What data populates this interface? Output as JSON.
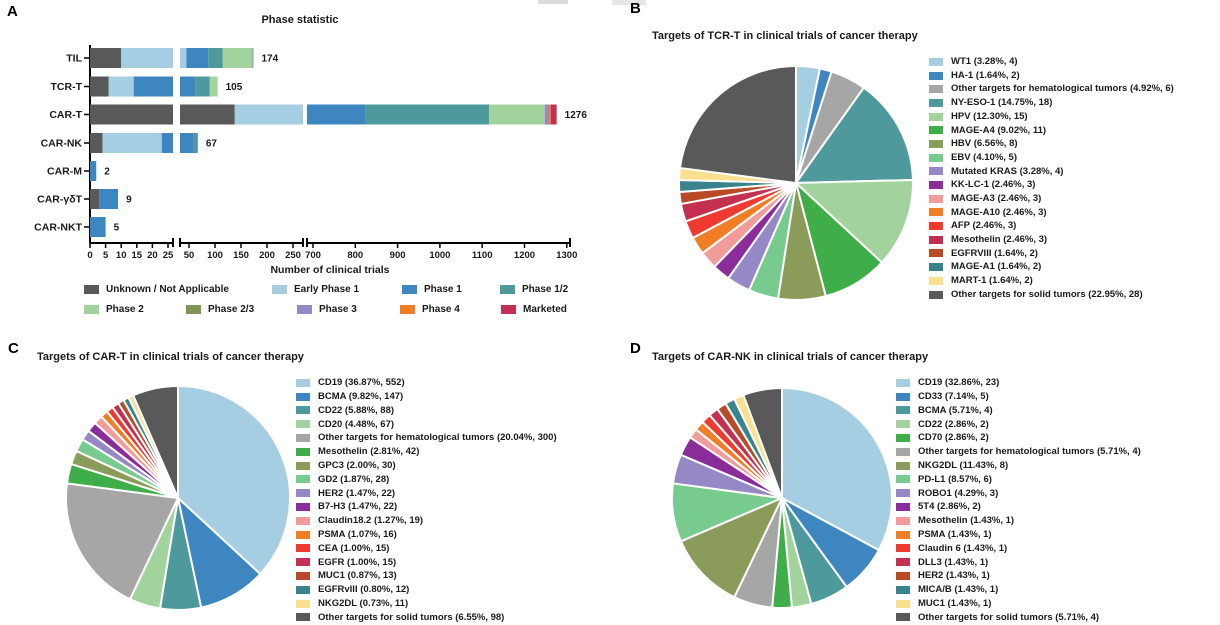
{
  "figure": {
    "artifact_note": "two faint gray crop marks at top edge"
  },
  "chart_data": [
    {
      "id": "A",
      "panel_label": "A",
      "type": "bar",
      "stacked": true,
      "orientation": "horizontal",
      "title": "Phase statistic",
      "xlabel": "Number of clinical trials",
      "axis_break_segments": [
        [
          0,
          25
        ],
        [
          50,
          250
        ],
        [
          700,
          1300
        ]
      ],
      "x_ticks": [
        [
          0,
          5,
          10,
          15,
          20,
          25
        ],
        [
          50,
          100,
          150,
          200,
          250
        ],
        [
          700,
          800,
          900,
          1000,
          1100,
          1200,
          1300
        ]
      ],
      "categories": [
        "TIL",
        "TCR-T",
        "CAR-T",
        "CAR-NK",
        "CAR-M",
        "CAR-γδT",
        "CAR-NKT"
      ],
      "totals": [
        174,
        105,
        1276,
        67,
        2,
        9,
        5
      ],
      "series": [
        {
          "name": "Unknown / Not Applicable",
          "color": "#595959",
          "values": [
            10,
            6,
            138,
            4,
            0,
            3,
            0
          ]
        },
        {
          "name": "Early Phase 1",
          "color": "#A6CEE3",
          "values": [
            35,
            8,
            262,
            19,
            0,
            0,
            0
          ]
        },
        {
          "name": "Phase 1",
          "color": "#3E86C0",
          "values": [
            42,
            49,
            423,
            36,
            2,
            6,
            5
          ]
        },
        {
          "name": "Phase 1/2",
          "color": "#4E999C",
          "values": [
            28,
            27,
            293,
            8,
            0,
            0,
            0
          ]
        },
        {
          "name": "Phase 2",
          "color": "#A3D39C",
          "values": [
            57,
            15,
            132,
            0,
            0,
            0,
            0
          ]
        },
        {
          "name": "Phase 2/3",
          "color": "#7E9654",
          "values": [
            0,
            0,
            0,
            0,
            0,
            0,
            0
          ]
        },
        {
          "name": "Phase 3",
          "color": "#9687C6",
          "values": [
            2,
            0,
            10,
            0,
            0,
            0,
            0
          ]
        },
        {
          "name": "Phase 4",
          "color": "#F07E26",
          "values": [
            0,
            0,
            4,
            0,
            0,
            0,
            0
          ]
        },
        {
          "name": "Marketed",
          "color": "#C4304F",
          "values": [
            0,
            0,
            14,
            0,
            0,
            0,
            0
          ]
        }
      ]
    },
    {
      "id": "B",
      "panel_label": "B",
      "type": "pie",
      "title": "Targets of TCR-T in clinical trials of cancer therapy",
      "slices": [
        {
          "label": "WT1",
          "pct": 3.28,
          "count": 4,
          "legend": "WT1 (3.28%, 4)",
          "color": "#A6CEE3"
        },
        {
          "label": "HA-1",
          "pct": 1.64,
          "count": 2,
          "legend": "HA-1 (1.64%, 2)",
          "color": "#3E86C0"
        },
        {
          "label": "Other targets for hematological tumors",
          "pct": 4.92,
          "count": 6,
          "legend": "Other targets for hematological tumors (4.92%, 6)",
          "color": "#A6A6A6"
        },
        {
          "label": "NY-ESO-1",
          "pct": 14.75,
          "count": 18,
          "legend": "NY-ESO-1 (14.75%, 18)",
          "color": "#4E999C"
        },
        {
          "label": "HPV",
          "pct": 12.3,
          "count": 15,
          "legend": "HPV (12.30%, 15)",
          "color": "#A3D39C"
        },
        {
          "label": "MAGE-A4",
          "pct": 9.02,
          "count": 11,
          "legend": "MAGE-A4 (9.02%, 11)",
          "color": "#3FAE49"
        },
        {
          "label": "HBV",
          "pct": 6.56,
          "count": 8,
          "legend": "HBV (6.56%, 8)",
          "color": "#8B9B5A"
        },
        {
          "label": "EBV",
          "pct": 4.1,
          "count": 5,
          "legend": "EBV (4.10%, 5)",
          "color": "#77CB8E"
        },
        {
          "label": "Mutated KRAS",
          "pct": 3.28,
          "count": 4,
          "legend": "Mutated KRAS (3.28%, 4)",
          "color": "#9687C6"
        },
        {
          "label": "KK-LC-1",
          "pct": 2.46,
          "count": 3,
          "legend": "KK-LC-1 (2.46%, 3)",
          "color": "#8A2D9B"
        },
        {
          "label": "MAGE-A3",
          "pct": 2.46,
          "count": 3,
          "legend": "MAGE-A3 (2.46%, 3)",
          "color": "#F29B9B"
        },
        {
          "label": "MAGE-A10",
          "pct": 2.46,
          "count": 3,
          "legend": "MAGE-A10 (2.46%, 3)",
          "color": "#F07E26"
        },
        {
          "label": "AFP",
          "pct": 2.46,
          "count": 3,
          "legend": "AFP (2.46%, 3)",
          "color": "#EF3A2F"
        },
        {
          "label": "Mesothelin",
          "pct": 2.46,
          "count": 3,
          "legend": "Mesothelin (2.46%, 3)",
          "color": "#C4304F"
        },
        {
          "label": "EGFRVIII",
          "pct": 1.64,
          "count": 2,
          "legend": "EGFRVIII (1.64%, 2)",
          "color": "#B94A26"
        },
        {
          "label": "MAGE-A1",
          "pct": 1.64,
          "count": 2,
          "legend": "MAGE-A1 (1.64%, 2)",
          "color": "#39848C"
        },
        {
          "label": "MART-1",
          "pct": 1.64,
          "count": 2,
          "legend": "MART-1 (1.64%, 2)",
          "color": "#F9DF8E"
        },
        {
          "label": "Other targets for solid tumors",
          "pct": 22.95,
          "count": 28,
          "legend": "Other targets for solid tumors (22.95%, 28)",
          "color": "#595959"
        }
      ]
    },
    {
      "id": "C",
      "panel_label": "C",
      "type": "pie",
      "title": "Targets of CAR-T in clinical trials of cancer therapy",
      "slices": [
        {
          "label": "CD19",
          "pct": 36.87,
          "count": 552,
          "legend": "CD19 (36.87%, 552)",
          "color": "#A6CEE3"
        },
        {
          "label": "BCMA",
          "pct": 9.82,
          "count": 147,
          "legend": "BCMA (9.82%, 147)",
          "color": "#3E86C0"
        },
        {
          "label": "CD22",
          "pct": 5.88,
          "count": 88,
          "legend": "CD22 (5.88%, 88)",
          "color": "#4E999C"
        },
        {
          "label": "CD20",
          "pct": 4.48,
          "count": 67,
          "legend": "CD20 (4.48%, 67)",
          "color": "#A3D39C"
        },
        {
          "label": "Other targets for hematological tumors",
          "pct": 20.04,
          "count": 300,
          "legend": "Other targets for hematological tumors (20.04%, 300)",
          "color": "#A6A6A6"
        },
        {
          "label": "Mesothelin",
          "pct": 2.81,
          "count": 42,
          "legend": "Mesothelin (2.81%, 42)",
          "color": "#3FAE49"
        },
        {
          "label": "GPC3",
          "pct": 2.0,
          "count": 30,
          "legend": "GPC3 (2.00%, 30)",
          "color": "#8B9B5A"
        },
        {
          "label": "GD2",
          "pct": 1.87,
          "count": 28,
          "legend": "GD2 (1.87%, 28)",
          "color": "#77CB8E"
        },
        {
          "label": "HER2",
          "pct": 1.47,
          "count": 22,
          "legend": "HER2 (1.47%, 22)",
          "color": "#9687C6"
        },
        {
          "label": "B7-H3",
          "pct": 1.47,
          "count": 22,
          "legend": "B7-H3 (1.47%, 22)",
          "color": "#8A2D9B"
        },
        {
          "label": "Claudin18.2",
          "pct": 1.27,
          "count": 19,
          "legend": "Claudin18.2 (1.27%, 19)",
          "color": "#F29B9B"
        },
        {
          "label": "PSMA",
          "pct": 1.07,
          "count": 16,
          "legend": "PSMA (1.07%, 16)",
          "color": "#F07E26"
        },
        {
          "label": "CEA",
          "pct": 1.0,
          "count": 15,
          "legend": "CEA (1.00%, 15)",
          "color": "#EF3A2F"
        },
        {
          "label": "EGFR",
          "pct": 1.0,
          "count": 15,
          "legend": "EGFR (1.00%, 15)",
          "color": "#C4304F"
        },
        {
          "label": "MUC1",
          "pct": 0.87,
          "count": 13,
          "legend": "MUC1 (0.87%, 13)",
          "color": "#B94A26"
        },
        {
          "label": "EGFRvIII",
          "pct": 0.8,
          "count": 12,
          "legend": "EGFRvIII (0.80%, 12)",
          "color": "#39848C"
        },
        {
          "label": "NKG2DL",
          "pct": 0.73,
          "count": 11,
          "legend": "NKG2DL (0.73%, 11)",
          "color": "#F9DF8E"
        },
        {
          "label": "Other targets for solid tumors",
          "pct": 6.55,
          "count": 98,
          "legend": "Other targets for solid tumors (6.55%, 98)",
          "color": "#595959"
        }
      ]
    },
    {
      "id": "D",
      "panel_label": "D",
      "type": "pie",
      "title": "Targets of CAR-NK in clinical trials of cancer therapy",
      "slices": [
        {
          "label": "CD19",
          "pct": 32.86,
          "count": 23,
          "legend": "CD19 (32.86%, 23)",
          "color": "#A6CEE3"
        },
        {
          "label": "CD33",
          "pct": 7.14,
          "count": 5,
          "legend": "CD33 (7.14%, 5)",
          "color": "#3E86C0"
        },
        {
          "label": "BCMA",
          "pct": 5.71,
          "count": 4,
          "legend": "BCMA (5.71%, 4)",
          "color": "#4E999C"
        },
        {
          "label": "CD22",
          "pct": 2.86,
          "count": 2,
          "legend": "CD22 (2.86%, 2)",
          "color": "#A3D39C"
        },
        {
          "label": "CD70",
          "pct": 2.86,
          "count": 2,
          "legend": "CD70 (2.86%, 2)",
          "color": "#3FAE49"
        },
        {
          "label": "Other targets for hematological tumors",
          "pct": 5.71,
          "count": 4,
          "legend": "Other targets for hematological tumors (5.71%, 4)",
          "color": "#A6A6A6"
        },
        {
          "label": "NKG2DL",
          "pct": 11.43,
          "count": 8,
          "legend": "NKG2DL (11.43%, 8)",
          "color": "#8B9B5A"
        },
        {
          "label": "PD-L1",
          "pct": 8.57,
          "count": 6,
          "legend": "PD-L1 (8.57%, 6)",
          "color": "#77CB8E"
        },
        {
          "label": "ROBO1",
          "pct": 4.29,
          "count": 3,
          "legend": "ROBO1 (4.29%, 3)",
          "color": "#9687C6"
        },
        {
          "label": "5T4",
          "pct": 2.86,
          "count": 2,
          "legend": "5T4 (2.86%, 2)",
          "color": "#8A2D9B"
        },
        {
          "label": "Mesothelin",
          "pct": 1.43,
          "count": 1,
          "legend": "Mesothelin (1.43%, 1)",
          "color": "#F29B9B"
        },
        {
          "label": "PSMA",
          "pct": 1.43,
          "count": 1,
          "legend": "PSMA (1.43%, 1)",
          "color": "#F07E26"
        },
        {
          "label": "Claudin 6",
          "pct": 1.43,
          "count": 1,
          "legend": "Claudin 6 (1.43%, 1)",
          "color": "#EF3A2F"
        },
        {
          "label": "DLL3",
          "pct": 1.43,
          "count": 1,
          "legend": "DLL3 (1.43%, 1)",
          "color": "#C4304F"
        },
        {
          "label": "HER2",
          "pct": 1.43,
          "count": 1,
          "legend": "HER2 (1.43%, 1)",
          "color": "#B94A26"
        },
        {
          "label": "MICA/B",
          "pct": 1.43,
          "count": 1,
          "legend": "MICA/B (1.43%, 1)",
          "color": "#39848C"
        },
        {
          "label": "MUC1",
          "pct": 1.43,
          "count": 1,
          "legend": "MUC1 (1.43%, 1)",
          "color": "#F9DF8E"
        },
        {
          "label": "Other targets for solid tumors",
          "pct": 5.71,
          "count": 4,
          "legend": "Other targets for solid tumors (5.71%, 4)",
          "color": "#595959"
        }
      ]
    }
  ]
}
